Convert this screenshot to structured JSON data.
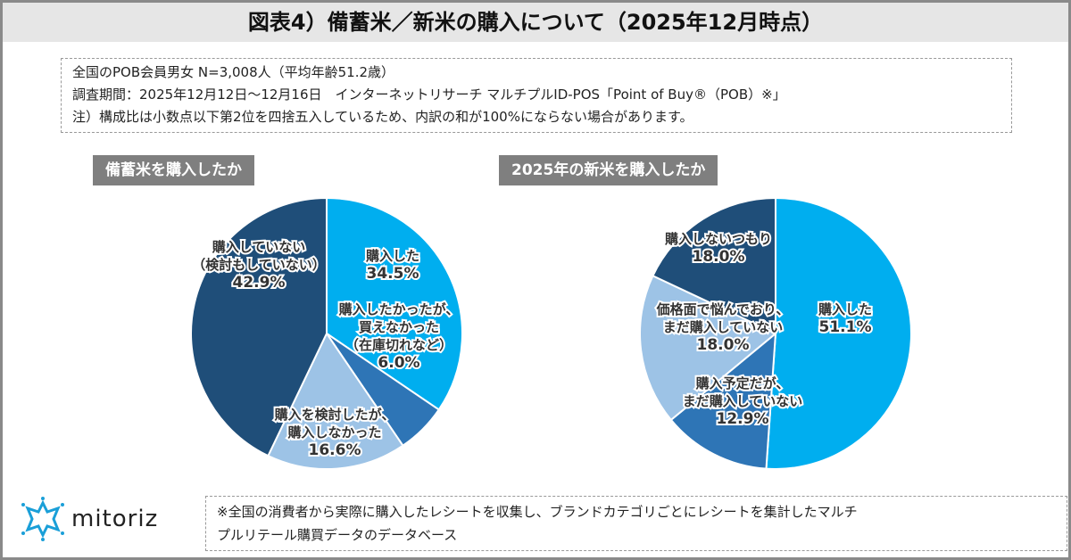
{
  "title": "図表4）備蓄米／新米の購入について（2025年12月時点）",
  "notes": [
    "全国のPOB会員男女 N=3,008人（平均年齢51.2歳）",
    "調査期間：2025年12月12日～12月16日　インターネットリサーチ マルチプルID-POS「Point of Buy®（POB）※」",
    "注）構成比は小数点以下第2位を四捨五入しているため、内訳の和が100%にならない場合があります。"
  ],
  "footnote": [
    "※全国の消費者から実際に購入したレシートを収集し、ブランドカテゴリごとにレシートを集計したマルチ",
    "プルリテール購買データのデータベース"
  ],
  "logo": "mitoriz",
  "chart_data": [
    {
      "type": "pie",
      "title": "備蓄米を購入したか",
      "start": "12 o'clock, clockwise",
      "slices": [
        {
          "label": [
            "購入した"
          ],
          "value": 34.5,
          "value_label": "34.5%",
          "color": "#00aeef"
        },
        {
          "label": [
            "購入したかったが、",
            "買えなかった",
            "（在庫切れなど）"
          ],
          "value": 6.0,
          "value_label": "6.0%",
          "color": "#2e75b6"
        },
        {
          "label": [
            "購入を検討したが、",
            "購入しなかった"
          ],
          "value": 16.6,
          "value_label": "16.6%",
          "color": "#9dc3e6"
        },
        {
          "label": [
            "購入していない",
            "（検討もしていない）"
          ],
          "value": 42.9,
          "value_label": "42.9%",
          "color": "#1f4e79"
        }
      ]
    },
    {
      "type": "pie",
      "title": "2025年の新米を購入したか",
      "start": "12 o'clock, clockwise",
      "slices": [
        {
          "label": [
            "購入した"
          ],
          "value": 51.1,
          "value_label": "51.1%",
          "color": "#00aeef"
        },
        {
          "label": [
            "購入予定だが、",
            "まだ購入していない"
          ],
          "value": 12.9,
          "value_label": "12.9%",
          "color": "#2e75b6"
        },
        {
          "label": [
            "価格面で悩んでおり、",
            "まだ購入していない"
          ],
          "value": 18.0,
          "value_label": "18.0%",
          "color": "#9dc3e6"
        },
        {
          "label": [
            "購入しないつもり"
          ],
          "value": 18.0,
          "value_label": "18.0%",
          "color": "#1f4e79"
        }
      ]
    }
  ]
}
